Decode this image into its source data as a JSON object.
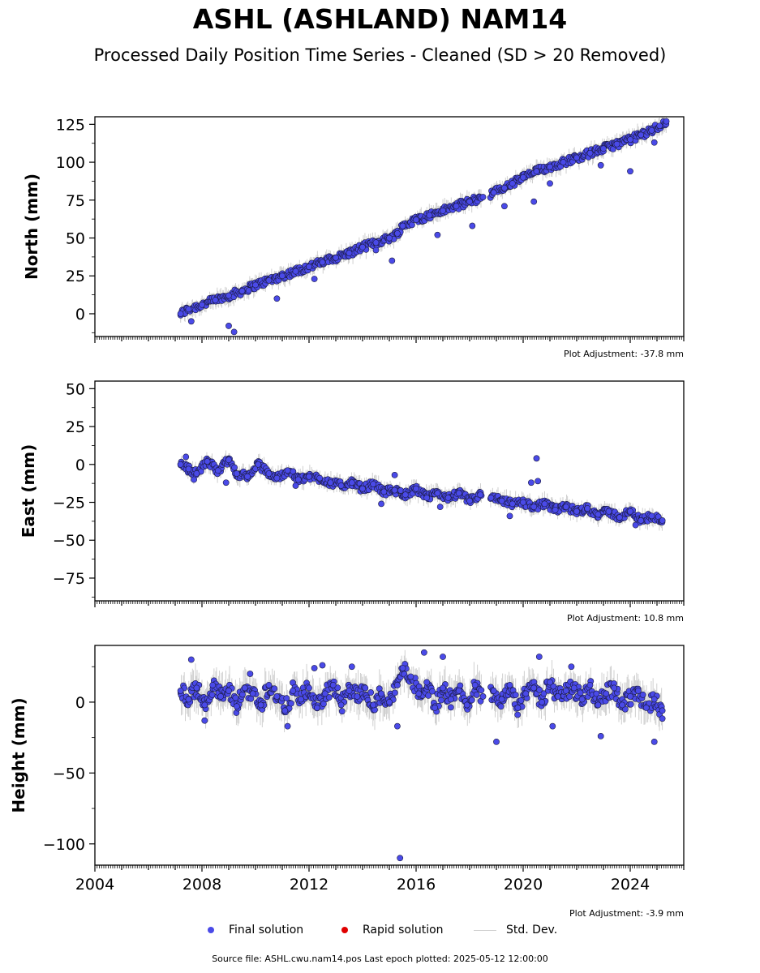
{
  "header": {
    "title": "ASHL (ASHLAND) NAM14",
    "subtitle": "Processed Daily Position Time Series - Cleaned (SD > 20 Removed)"
  },
  "legend": {
    "final_label": "Final solution",
    "rapid_label": "Rapid solution",
    "std_label": "Std. Dev.",
    "final_color": "#4a4ae8",
    "rapid_color": "#e00000",
    "std_color": "#cfcfcf"
  },
  "footer": {
    "source": "Source file: ASHL.cwu.nam14.pos  Last epoch plotted: 2025-05-12 12:00:00"
  },
  "chart_data": [
    {
      "type": "scatter",
      "ylabel": "North (mm)",
      "adjustment": "Plot Adjustment: -37.8 mm",
      "xlim": [
        2004.0,
        2026.0
      ],
      "ylim": [
        -15,
        130
      ],
      "yticks": [
        0,
        25,
        50,
        75,
        100,
        125
      ],
      "yticklabels": [
        "0",
        "25",
        "50",
        "75",
        "100",
        "125"
      ],
      "series": [
        {
          "x": [
            2007.2,
            2007.5,
            2008.0,
            2008.5,
            2009.0,
            2009.5,
            2010.0,
            2010.5,
            2011.0,
            2011.5,
            2012.0,
            2012.5,
            2013.0,
            2013.5,
            2014.0,
            2014.5,
            2015.0,
            2015.3,
            2015.5,
            2016.0,
            2016.5,
            2017.0,
            2017.5,
            2018.0,
            2018.5,
            2018.9,
            2019.3,
            2019.6,
            2020.0,
            2020.5,
            2021.0,
            2021.5,
            2022.0,
            2022.5,
            2023.0,
            2023.5,
            2024.0,
            2024.4,
            2024.8,
            2025.1,
            2025.35
          ],
          "y": [
            0,
            3,
            6,
            9,
            12,
            15,
            19,
            22,
            25,
            28,
            31,
            34,
            37,
            40,
            44,
            47,
            50,
            53,
            58,
            62,
            65,
            68,
            71,
            74,
            77,
            80,
            83,
            86,
            90,
            94,
            97,
            100,
            103,
            106,
            109,
            112,
            115,
            118,
            121,
            124,
            127
          ]
        },
        {
          "x": [
            2007.6,
            2009.0,
            2009.2,
            2010.8,
            2012.2,
            2014.5,
            2015.1,
            2016.8,
            2018.1,
            2019.3,
            2020.4,
            2021.0,
            2022.9,
            2024.0,
            2024.9
          ],
          "y": [
            -5,
            -8,
            -12,
            10,
            23,
            42,
            35,
            52,
            58,
            71,
            74,
            86,
            98,
            94,
            113
          ]
        }
      ]
    },
    {
      "type": "scatter",
      "ylabel": "East (mm)",
      "adjustment": "Plot Adjustment: 10.8 mm",
      "xlim": [
        2004.0,
        2026.0
      ],
      "ylim": [
        -90,
        55
      ],
      "yticks": [
        -75,
        -50,
        -25,
        0,
        25,
        50
      ],
      "yticklabels": [
        "−75",
        "−50",
        "−25",
        "0",
        "25",
        "50"
      ],
      "series": [
        {
          "x": [
            2007.2,
            2007.5,
            2007.8,
            2008.2,
            2008.6,
            2009.0,
            2009.3,
            2009.7,
            2010.1,
            2010.5,
            2010.8,
            2011.2,
            2011.6,
            2012.0,
            2012.4,
            2012.8,
            2013.2,
            2013.6,
            2014.0,
            2014.4,
            2014.8,
            2015.2,
            2015.6,
            2016.0,
            2016.4,
            2016.8,
            2017.2,
            2017.6,
            2018.0,
            2018.4,
            2018.8,
            2019.2,
            2019.6,
            2020.0,
            2020.4,
            2020.8,
            2021.2,
            2021.6,
            2022.0,
            2022.4,
            2022.8,
            2023.2,
            2023.6,
            2024.0,
            2024.4,
            2024.8,
            2025.2
          ],
          "y": [
            0,
            -3,
            -6,
            2,
            -4,
            3,
            -6,
            -8,
            0,
            -6,
            -9,
            -4,
            -10,
            -8,
            -9,
            -12,
            -14,
            -12,
            -16,
            -13,
            -18,
            -17,
            -20,
            -16,
            -22,
            -19,
            -22,
            -19,
            -24,
            -20,
            -22,
            -24,
            -26,
            -25,
            -28,
            -26,
            -30,
            -28,
            -31,
            -29,
            -33,
            -31,
            -35,
            -31,
            -37,
            -34,
            -37
          ]
        },
        {
          "x": [
            2007.4,
            2007.7,
            2008.9,
            2011.5,
            2014.7,
            2015.2,
            2016.9,
            2019.5,
            2020.3,
            2020.5,
            2020.55,
            2024.2
          ],
          "y": [
            5,
            -10,
            -12,
            -14,
            -26,
            -7,
            -28,
            -34,
            -12,
            4,
            -11,
            -40
          ]
        }
      ]
    },
    {
      "type": "scatter",
      "ylabel": "Height (mm)",
      "adjustment": "Plot Adjustment: -3.9 mm",
      "xlim": [
        2004.0,
        2026.0
      ],
      "ylim": [
        -115,
        40
      ],
      "yticks": [
        -100,
        -50,
        0
      ],
      "yticklabels": [
        "−100",
        "−50",
        "0"
      ],
      "xticks": [
        2004,
        2008,
        2012,
        2016,
        2020,
        2024
      ],
      "xticklabels": [
        "2004",
        "2008",
        "2012",
        "2016",
        "2020",
        "2024"
      ],
      "series": [
        {
          "x": [
            2007.2,
            2007.5,
            2007.8,
            2008.1,
            2008.4,
            2008.7,
            2009.0,
            2009.3,
            2009.6,
            2009.9,
            2010.2,
            2010.5,
            2010.8,
            2011.1,
            2011.4,
            2011.7,
            2012.0,
            2012.3,
            2012.6,
            2012.9,
            2013.2,
            2013.5,
            2013.8,
            2014.1,
            2014.4,
            2014.7,
            2015.0,
            2015.3,
            2015.5,
            2015.8,
            2016.1,
            2016.4,
            2016.7,
            2017.0,
            2017.3,
            2017.6,
            2017.9,
            2018.2,
            2018.5,
            2018.9,
            2019.2,
            2019.5,
            2019.8,
            2020.1,
            2020.4,
            2020.7,
            2021.0,
            2021.3,
            2021.6,
            2021.9,
            2022.2,
            2022.5,
            2022.8,
            2023.1,
            2023.4,
            2023.7,
            2024.0,
            2024.3,
            2024.6,
            2024.9,
            2025.2
          ],
          "y": [
            8,
            2,
            10,
            -2,
            12,
            4,
            8,
            -3,
            10,
            6,
            -2,
            12,
            4,
            -6,
            8,
            2,
            10,
            -4,
            6,
            12,
            -2,
            8,
            4,
            10,
            -2,
            6,
            0,
            12,
            24,
            18,
            6,
            14,
            -4,
            10,
            2,
            8,
            -2,
            12,
            4,
            8,
            2,
            12,
            -4,
            6,
            10,
            0,
            14,
            4,
            8,
            10,
            2,
            12,
            -2,
            6,
            10,
            -2,
            4,
            8,
            -4,
            2,
            -6
          ]
        },
        {
          "x": [
            2007.6,
            2008.1,
            2009.8,
            2011.2,
            2012.2,
            2012.5,
            2013.6,
            2015.3,
            2015.4,
            2016.3,
            2017.0,
            2019.0,
            2020.6,
            2021.1,
            2021.8,
            2022.9,
            2024.9
          ],
          "y": [
            30,
            -13,
            20,
            -17,
            24,
            26,
            25,
            -17,
            -110,
            35,
            32,
            -28,
            32,
            -17,
            25,
            -24,
            -28
          ]
        }
      ]
    }
  ]
}
